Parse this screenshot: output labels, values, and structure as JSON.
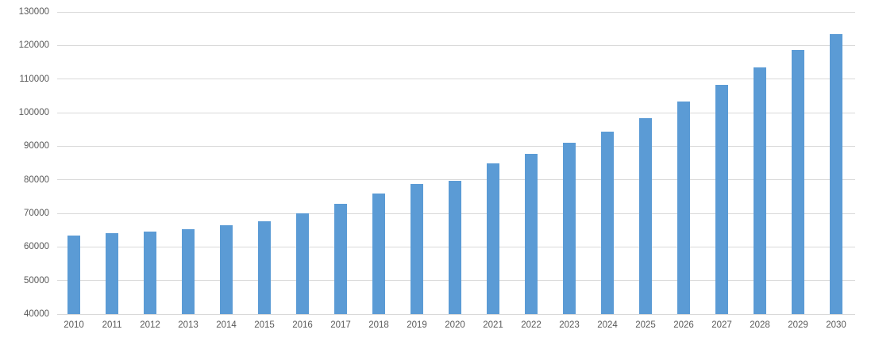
{
  "chart_data": {
    "type": "bar",
    "title": "",
    "xlabel": "",
    "ylabel": "",
    "categories": [
      "2010",
      "2011",
      "2012",
      "2013",
      "2014",
      "2015",
      "2016",
      "2017",
      "2018",
      "2019",
      "2020",
      "2021",
      "2022",
      "2023",
      "2024",
      "2025",
      "2026",
      "2027",
      "2028",
      "2029",
      "2030"
    ],
    "values": [
      63500,
      64000,
      64600,
      65200,
      66400,
      67700,
      70000,
      72800,
      75900,
      78800,
      79600,
      85000,
      87800,
      91000,
      94400,
      98400,
      103300,
      108200,
      113400,
      118700,
      123500
    ],
    "ylim": [
      40000,
      130000
    ],
    "ytick_step": 10000,
    "ytick_labels": [
      "40000",
      "50000",
      "60000",
      "70000",
      "80000",
      "90000",
      "100000",
      "110000",
      "120000",
      "130000"
    ],
    "grid": true,
    "legend": false,
    "bar_color": "#5b9bd5",
    "gridline_color": "#d9d9d9",
    "tick_label_color": "#595959",
    "background_color": "#ffffff"
  }
}
